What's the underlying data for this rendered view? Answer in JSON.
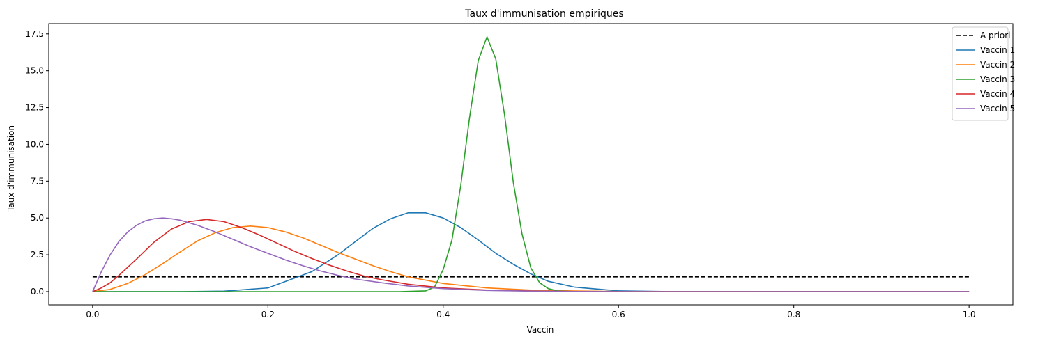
{
  "chart_data": {
    "type": "line",
    "title": "Taux d'immunisation empiriques",
    "xlabel": "Vaccin",
    "ylabel": "Taux d'immunisation",
    "xlim": [
      -0.05,
      1.05
    ],
    "ylim": [
      -0.9,
      18.2
    ],
    "xticks": [
      0.0,
      0.2,
      0.4,
      0.6,
      0.8,
      1.0
    ],
    "xtick_labels": [
      "0.0",
      "0.2",
      "0.4",
      "0.6",
      "0.8",
      "1.0"
    ],
    "yticks": [
      0.0,
      2.5,
      5.0,
      7.5,
      10.0,
      12.5,
      15.0,
      17.5
    ],
    "ytick_labels": [
      "0.0",
      "2.5",
      "5.0",
      "7.5",
      "10.0",
      "12.5",
      "15.0",
      "17.5"
    ],
    "grid": false,
    "legend_position": "top-right",
    "series": [
      {
        "name": "A priori",
        "color": "#000000",
        "dashed": true,
        "x": [
          0.0,
          1.0
        ],
        "y": [
          1.0,
          1.0
        ]
      },
      {
        "name": "Vaccin 1",
        "color": "#1f77b4",
        "x": [
          0.0,
          0.05,
          0.1,
          0.15,
          0.2,
          0.25,
          0.28,
          0.3,
          0.32,
          0.34,
          0.36,
          0.38,
          0.4,
          0.42,
          0.44,
          0.46,
          0.48,
          0.5,
          0.52,
          0.55,
          0.6,
          0.65,
          0.7,
          0.8,
          1.0
        ],
        "y": [
          0.0,
          0.0,
          0.0,
          0.03,
          0.25,
          1.35,
          2.5,
          3.4,
          4.3,
          4.95,
          5.35,
          5.35,
          5.0,
          4.35,
          3.5,
          2.6,
          1.85,
          1.2,
          0.7,
          0.3,
          0.05,
          0.01,
          0.0,
          0.0,
          0.0
        ]
      },
      {
        "name": "Vaccin 2",
        "color": "#ff7f0e",
        "x": [
          0.0,
          0.02,
          0.04,
          0.06,
          0.08,
          0.1,
          0.12,
          0.14,
          0.16,
          0.18,
          0.2,
          0.22,
          0.24,
          0.26,
          0.28,
          0.3,
          0.32,
          0.34,
          0.36,
          0.4,
          0.45,
          0.5,
          0.55,
          0.6,
          1.0
        ],
        "y": [
          0.0,
          0.15,
          0.55,
          1.15,
          1.9,
          2.7,
          3.45,
          4.0,
          4.35,
          4.45,
          4.35,
          4.05,
          3.65,
          3.15,
          2.65,
          2.2,
          1.75,
          1.35,
          1.0,
          0.55,
          0.25,
          0.1,
          0.04,
          0.01,
          0.0
        ]
      },
      {
        "name": "Vaccin 3",
        "color": "#2ca02c",
        "x": [
          0.0,
          0.35,
          0.38,
          0.39,
          0.4,
          0.41,
          0.42,
          0.43,
          0.44,
          0.45,
          0.46,
          0.47,
          0.48,
          0.49,
          0.5,
          0.51,
          0.52,
          0.53,
          0.55,
          1.0
        ],
        "y": [
          0.0,
          0.0,
          0.05,
          0.3,
          1.5,
          3.5,
          7.2,
          11.8,
          15.7,
          17.3,
          15.8,
          12.0,
          7.4,
          3.9,
          1.6,
          0.6,
          0.2,
          0.05,
          0.0,
          0.0
        ]
      },
      {
        "name": "Vaccin 4",
        "color": "#d62728",
        "x": [
          0.0,
          0.01,
          0.02,
          0.03,
          0.05,
          0.07,
          0.09,
          0.11,
          0.13,
          0.15,
          0.17,
          0.19,
          0.21,
          0.23,
          0.25,
          0.27,
          0.29,
          0.31,
          0.33,
          0.36,
          0.4,
          0.45,
          0.5,
          0.55,
          0.6,
          1.0
        ],
        "y": [
          0.0,
          0.25,
          0.6,
          1.1,
          2.2,
          3.35,
          4.25,
          4.75,
          4.9,
          4.75,
          4.35,
          3.85,
          3.3,
          2.75,
          2.25,
          1.8,
          1.4,
          1.05,
          0.8,
          0.5,
          0.25,
          0.1,
          0.04,
          0.01,
          0.0,
          0.0
        ]
      },
      {
        "name": "Vaccin 5",
        "color": "#9467bd",
        "x": [
          0.0,
          0.01,
          0.02,
          0.03,
          0.04,
          0.05,
          0.06,
          0.07,
          0.08,
          0.09,
          0.1,
          0.12,
          0.14,
          0.16,
          0.18,
          0.2,
          0.22,
          0.24,
          0.26,
          0.28,
          0.3,
          0.33,
          0.36,
          0.4,
          0.45,
          0.5,
          0.55,
          0.6,
          1.0
        ],
        "y": [
          0.0,
          1.35,
          2.5,
          3.4,
          4.05,
          4.5,
          4.8,
          4.95,
          5.0,
          4.95,
          4.85,
          4.5,
          4.05,
          3.55,
          3.05,
          2.6,
          2.15,
          1.75,
          1.4,
          1.1,
          0.85,
          0.6,
          0.38,
          0.2,
          0.08,
          0.03,
          0.01,
          0.0,
          0.0
        ]
      }
    ]
  }
}
